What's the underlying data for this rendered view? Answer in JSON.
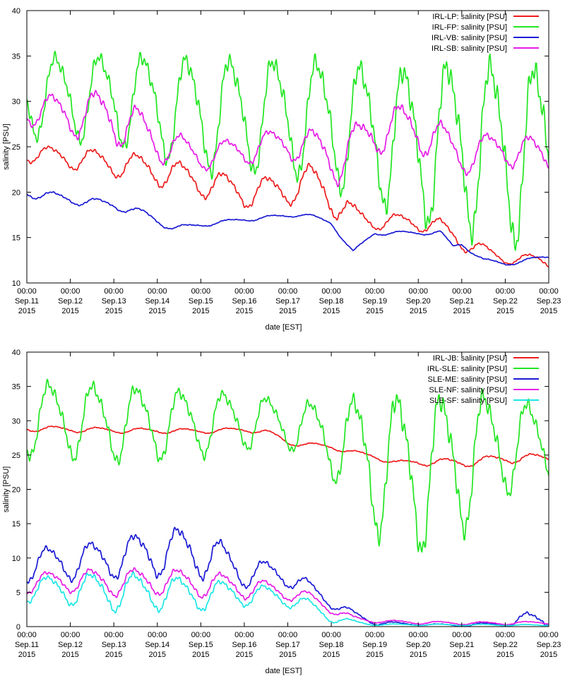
{
  "chart_data": [
    {
      "type": "line",
      "title": "",
      "xlabel": "date [EST]",
      "ylabel": "salinity [PSU]",
      "ylim": [
        10,
        40
      ],
      "xlim": [
        0,
        12
      ],
      "yticks": [
        "10",
        "15",
        "20",
        "25",
        "30",
        "35",
        "40"
      ],
      "xtick_labels": [
        [
          "00:00",
          "Sep.11",
          "2015"
        ],
        [
          "00:00",
          "Sep.12",
          "2015"
        ],
        [
          "00:00",
          "Sep.13",
          "2015"
        ],
        [
          "00:00",
          "Sep.14",
          "2015"
        ],
        [
          "00:00",
          "Sep.15",
          "2015"
        ],
        [
          "00:00",
          "Sep.16",
          "2015"
        ],
        [
          "00:00",
          "Sep.17",
          "2015"
        ],
        [
          "00:00",
          "Sep.18",
          "2015"
        ],
        [
          "00:00",
          "Sep.19",
          "2015"
        ],
        [
          "00:00",
          "Sep.20",
          "2015"
        ],
        [
          "00:00",
          "Sep.21",
          "2015"
        ],
        [
          "00:00",
          "Sep.22",
          "2015"
        ],
        [
          "00:00",
          "Sep.23",
          "2015"
        ]
      ],
      "legend_position": "top-right",
      "series": [
        {
          "name": "IRL-LP: salinity [PSU]",
          "color": "#ee1c1c",
          "pattern": "diurnal",
          "base": [
            [
              0,
              24.4
            ],
            [
              0.5,
              24.0
            ],
            [
              1,
              23.8
            ],
            [
              2,
              23.2
            ],
            [
              3,
              22.4
            ],
            [
              4,
              21.2
            ],
            [
              5,
              20.0
            ],
            [
              6,
              20.3
            ],
            [
              6.5,
              21.3
            ],
            [
              7,
              19.8
            ],
            [
              7.5,
              17.2
            ],
            [
              8,
              16.8
            ],
            [
              9,
              16.7
            ],
            [
              9.5,
              16.2
            ],
            [
              10,
              14.6
            ],
            [
              11,
              12.6
            ],
            [
              12,
              12.5
            ]
          ],
          "amp": [
            [
              0,
              0.9
            ],
            [
              3,
              1.5
            ],
            [
              6,
              1.5
            ],
            [
              7,
              2.0
            ],
            [
              8,
              0.8
            ],
            [
              10,
              0.9
            ],
            [
              11,
              0.4
            ],
            [
              12,
              0.8
            ]
          ],
          "period": 1.0,
          "phase": 0.3
        },
        {
          "name": "IRL-FP: salinity [PSU]",
          "color": "#22e622",
          "pattern": "diurnal",
          "base": [
            [
              0,
              30.8
            ],
            [
              2,
              30.5
            ],
            [
              3,
              29.8
            ],
            [
              4,
              28.9
            ],
            [
              6,
              28.7
            ],
            [
              7,
              28.0
            ],
            [
              8,
              26.8
            ],
            [
              9,
              25.6
            ],
            [
              10,
              25.8
            ],
            [
              11,
              24.7
            ],
            [
              12,
              24.8
            ]
          ],
          "amp": [
            [
              0,
              4.1
            ],
            [
              2,
              4.6
            ],
            [
              4,
              5.8
            ],
            [
              6,
              5.9
            ],
            [
              8,
              7.0
            ],
            [
              9,
              8.0
            ],
            [
              11,
              9.3
            ],
            [
              12,
              9.0
            ]
          ],
          "period": 1.0,
          "phase": 0.45
        },
        {
          "name": "IRL-VB: salinity [PSU]",
          "color": "#1a1ad4",
          "pattern": "diurnal",
          "base": [
            [
              0,
              20.0
            ],
            [
              1,
              19.2
            ],
            [
              2,
              18.6
            ],
            [
              2.7,
              17.6
            ],
            [
              3,
              16.9
            ],
            [
              3.4,
              16.0
            ],
            [
              4,
              16.4
            ],
            [
              5,
              17.0
            ],
            [
              6,
              17.4
            ],
            [
              6.3,
              17.6
            ],
            [
              6.5,
              17.4
            ],
            [
              7,
              16.6
            ],
            [
              7.5,
              13.4
            ],
            [
              8,
              15.5
            ],
            [
              9,
              15.5
            ],
            [
              9.5,
              15.6
            ],
            [
              9.8,
              14.0
            ],
            [
              10,
              14.3
            ],
            [
              10.5,
              12.5
            ],
            [
              11,
              12.1
            ],
            [
              12,
              12.9
            ]
          ],
          "amp": [
            [
              0,
              0.5
            ],
            [
              3,
              0.4
            ],
            [
              4,
              0.2
            ],
            [
              7,
              0.2
            ],
            [
              8,
              0.2
            ],
            [
              9,
              0.2
            ],
            [
              12,
              0.2
            ]
          ],
          "period": 1.0,
          "phase": 0.4
        },
        {
          "name": "IRL-SB: salinity [PSU]",
          "color": "#e61ce6",
          "pattern": "diurnal",
          "base": [
            [
              0,
              29.2
            ],
            [
              1,
              28.6
            ],
            [
              2,
              28.5
            ],
            [
              3,
              25.6
            ],
            [
              4,
              23.9
            ],
            [
              5,
              24.7
            ],
            [
              6,
              25.6
            ],
            [
              7,
              24.2
            ],
            [
              7.2,
              23.5
            ],
            [
              8,
              27.0
            ],
            [
              9,
              27.2
            ],
            [
              10,
              24.0
            ],
            [
              11,
              25.0
            ],
            [
              12,
              23.8
            ]
          ],
          "amp": [
            [
              0,
              1.5
            ],
            [
              2,
              2.8
            ],
            [
              3,
              2.0
            ],
            [
              4,
              1.3
            ],
            [
              6,
              1.6
            ],
            [
              7,
              2.4
            ],
            [
              8,
              2.4
            ],
            [
              9,
              2.5
            ],
            [
              10,
              1.8
            ],
            [
              12,
              1.8
            ]
          ],
          "period": 1.0,
          "phase": 0.35
        }
      ]
    },
    {
      "type": "line",
      "title": "",
      "xlabel": "date [EST]",
      "ylabel": "salinity [PSU]",
      "ylim": [
        0,
        40
      ],
      "xlim": [
        0,
        12
      ],
      "yticks": [
        "0",
        "5",
        "10",
        "15",
        "20",
        "25",
        "30",
        "35",
        "40"
      ],
      "xtick_labels": [
        [
          "00:00",
          "Sep.11",
          "2015"
        ],
        [
          "00:00",
          "Sep.12",
          "2015"
        ],
        [
          "00:00",
          "Sep.13",
          "2015"
        ],
        [
          "00:00",
          "Sep.14",
          "2015"
        ],
        [
          "00:00",
          "Sep.15",
          "2015"
        ],
        [
          "00:00",
          "Sep.16",
          "2015"
        ],
        [
          "00:00",
          "Sep.17",
          "2015"
        ],
        [
          "00:00",
          "Sep.18",
          "2015"
        ],
        [
          "00:00",
          "Sep.19",
          "2015"
        ],
        [
          "00:00",
          "Sep.20",
          "2015"
        ],
        [
          "00:00",
          "Sep.21",
          "2015"
        ],
        [
          "00:00",
          "Sep.22",
          "2015"
        ],
        [
          "00:00",
          "Sep.23",
          "2015"
        ]
      ],
      "legend_position": "top-right",
      "series": [
        {
          "name": "IRL-JB: salinity [PSU]",
          "color": "#ee1c1c",
          "pattern": "diurnal",
          "base": [
            [
              0,
              28.9
            ],
            [
              2,
              28.6
            ],
            [
              4,
              28.5
            ],
            [
              5,
              28.7
            ],
            [
              5.5,
              28.4
            ],
            [
              5.8,
              27.6
            ],
            [
              6,
              26.8
            ],
            [
              7,
              26.2
            ],
            [
              7.5,
              25.4
            ],
            [
              8,
              24.8
            ],
            [
              8.5,
              23.8
            ],
            [
              9,
              24.0
            ],
            [
              10,
              23.9
            ],
            [
              11,
              24.5
            ],
            [
              12,
              24.6
            ]
          ],
          "amp": [
            [
              0,
              0.4
            ],
            [
              5,
              0.3
            ],
            [
              6,
              0.3
            ],
            [
              8,
              0.3
            ],
            [
              10,
              0.6
            ],
            [
              12,
              0.6
            ]
          ],
          "period": 1.0,
          "phase": 0.4
        },
        {
          "name": "IRL-SLE: salinity [PSU]",
          "color": "#22e622",
          "pattern": "diurnal",
          "base": [
            [
              0,
              30.5
            ],
            [
              1,
              30.3
            ],
            [
              2,
              29.9
            ],
            [
              3,
              29.8
            ],
            [
              4,
              29.8
            ],
            [
              5,
              30.2
            ],
            [
              6,
              29.6
            ],
            [
              7,
              27.6
            ],
            [
              8,
              24.3
            ],
            [
              9,
              22.7
            ],
            [
              10,
              24.3
            ],
            [
              11,
              27.0
            ],
            [
              12,
              26.7
            ]
          ],
          "amp": [
            [
              0,
              5.0
            ],
            [
              2,
              5.2
            ],
            [
              3,
              4.9
            ],
            [
              5,
              3.8
            ],
            [
              6,
              3.2
            ],
            [
              7,
              5.0
            ],
            [
              8,
              9.5
            ],
            [
              9,
              10.7
            ],
            [
              10,
              9.5
            ],
            [
              11,
              6.8
            ],
            [
              12,
              4.8
            ]
          ],
          "period": 1.0,
          "phase": 0.3
        },
        {
          "name": "SLE-ME: salinity [PSU]",
          "color": "#1a1ad4",
          "pattern": "diurnal",
          "base": [
            [
              0,
              9.0
            ],
            [
              1,
              9.5
            ],
            [
              2,
              10.0
            ],
            [
              3,
              11.0
            ],
            [
              4,
              11.0
            ],
            [
              5,
              8.0
            ],
            [
              6,
              7.5
            ],
            [
              6.5,
              5.5
            ],
            [
              7,
              3.6
            ],
            [
              7.5,
              1.8
            ],
            [
              8,
              0.6
            ],
            [
              9,
              0.3
            ],
            [
              10,
              0.2
            ],
            [
              11,
              0.4
            ],
            [
              11.5,
              1.0
            ],
            [
              12,
              1.2
            ]
          ],
          "amp": [
            [
              0,
              2.2
            ],
            [
              2,
              2.6
            ],
            [
              3,
              3.2
            ],
            [
              4,
              3.4
            ],
            [
              5,
              2.0
            ],
            [
              6,
              1.5
            ],
            [
              7,
              0.8
            ],
            [
              8,
              0.3
            ],
            [
              9,
              0.1
            ],
            [
              11,
              0.3
            ],
            [
              11.5,
              1.1
            ],
            [
              12,
              1.0
            ]
          ],
          "period": 1.0,
          "phase": 0.25
        },
        {
          "name": "SLE-NF: salinity [PSU]",
          "color": "#e61ce6",
          "pattern": "diurnal",
          "base": [
            [
              0,
              6.3
            ],
            [
              1,
              6.8
            ],
            [
              2,
              6.5
            ],
            [
              3,
              6.7
            ],
            [
              4,
              6.3
            ],
            [
              5,
              5.8
            ],
            [
              6,
              5.0
            ],
            [
              6.5,
              4.2
            ],
            [
              7,
              2.6
            ],
            [
              7.5,
              1.2
            ],
            [
              8,
              0.8
            ],
            [
              9,
              0.6
            ],
            [
              10,
              0.5
            ],
            [
              11,
              0.5
            ],
            [
              12,
              0.6
            ]
          ],
          "amp": [
            [
              0,
              1.3
            ],
            [
              2,
              1.8
            ],
            [
              4,
              1.8
            ],
            [
              5,
              1.5
            ],
            [
              6,
              1.0
            ],
            [
              7,
              0.6
            ],
            [
              8,
              0.2
            ],
            [
              12,
              0.2
            ]
          ],
          "period": 1.0,
          "phase": 0.25
        },
        {
          "name": "SLE-SF: salinity [PSU]",
          "color": "#1ce6e6",
          "pattern": "diurnal",
          "base": [
            [
              0,
              5.4
            ],
            [
              1,
              5.5
            ],
            [
              2,
              5.2
            ],
            [
              3,
              5.1
            ],
            [
              4,
              4.7
            ],
            [
              5,
              4.8
            ],
            [
              6,
              4.2
            ],
            [
              6.5,
              3.0
            ],
            [
              7,
              1.3
            ],
            [
              7.5,
              0.6
            ],
            [
              8,
              0.3
            ],
            [
              12,
              0.2
            ]
          ],
          "amp": [
            [
              0,
              1.6
            ],
            [
              2,
              2.6
            ],
            [
              3,
              2.4
            ],
            [
              4,
              2.1
            ],
            [
              5,
              1.6
            ],
            [
              6,
              1.2
            ],
            [
              7,
              0.6
            ],
            [
              8,
              0.1
            ],
            [
              12,
              0.1
            ]
          ],
          "period": 1.0,
          "phase": 0.25
        }
      ]
    }
  ]
}
